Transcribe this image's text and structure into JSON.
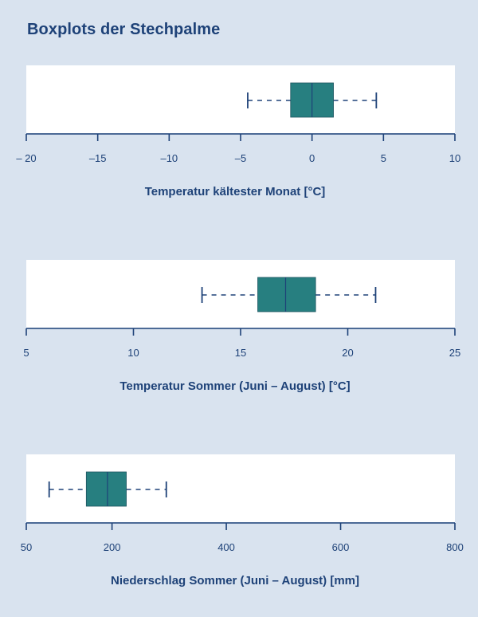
{
  "title": "Boxplots der Stechpalme",
  "colors": {
    "background": "#d9e3ef",
    "panel": "#ffffff",
    "text": "#1e4278",
    "box": "#277f80"
  },
  "chart_data": [
    {
      "type": "boxplot",
      "xlabel": "Temperatur kältester Monat [°C]",
      "xlim": [
        -20,
        10
      ],
      "ticks": [
        -20,
        -15,
        -10,
        -5,
        0,
        5,
        10
      ],
      "tick_labels": [
        "– 20",
        "–15",
        "–10",
        "–5",
        "0",
        "5",
        "10"
      ],
      "box": {
        "whisker_low": -4.5,
        "q1": -1.5,
        "median": 0,
        "q3": 1.5,
        "whisker_high": 4.5
      },
      "grid": false
    },
    {
      "type": "boxplot",
      "xlabel": "Temperatur Sommer (Juni – August) [°C]",
      "xlim": [
        5,
        25
      ],
      "ticks": [
        5,
        10,
        15,
        20,
        25
      ],
      "tick_labels": [
        "5",
        "10",
        "15",
        "20",
        "25"
      ],
      "box": {
        "whisker_low": 13.2,
        "q1": 15.8,
        "median": 17.1,
        "q3": 18.5,
        "whisker_high": 21.3
      },
      "grid": false
    },
    {
      "type": "boxplot",
      "xlabel": "Niederschlag Sommer (Juni – August) [mm]",
      "xlim": [
        50,
        800
      ],
      "ticks": [
        50,
        200,
        400,
        600,
        800
      ],
      "tick_labels": [
        "50",
        "200",
        "400",
        "600",
        "800"
      ],
      "box": {
        "whisker_low": 90,
        "q1": 155,
        "median": 192,
        "q3": 225,
        "whisker_high": 295
      },
      "grid": false
    }
  ]
}
